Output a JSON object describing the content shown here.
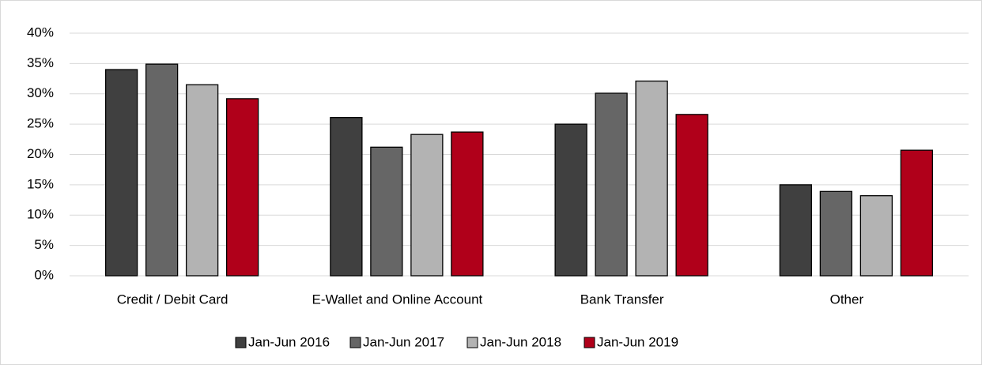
{
  "chart_data": {
    "type": "bar",
    "categories": [
      "Credit / Debit Card",
      "E-Wallet and Online Account",
      "Bank Transfer",
      "Other"
    ],
    "series": [
      {
        "name": "Jan-Jun 2016",
        "color": "#404040",
        "values": [
          34.0,
          26.1,
          25.0,
          15.0
        ]
      },
      {
        "name": "Jan-Jun 2017",
        "color": "#666666",
        "values": [
          34.9,
          21.2,
          30.1,
          13.9
        ]
      },
      {
        "name": "Jan-Jun 2018",
        "color": "#b3b3b3",
        "values": [
          31.5,
          23.3,
          32.1,
          13.2
        ]
      },
      {
        "name": "Jan-Jun 2019",
        "color": "#b0001a",
        "values": [
          29.2,
          23.7,
          26.6,
          20.7
        ]
      }
    ],
    "ylim": [
      0,
      40
    ],
    "yticks": [
      {
        "value": 0,
        "label": "0%"
      },
      {
        "value": 5,
        "label": "5%"
      },
      {
        "value": 10,
        "label": "10%"
      },
      {
        "value": 15,
        "label": "15%"
      },
      {
        "value": 20,
        "label": "20%"
      },
      {
        "value": 25,
        "label": "25%"
      },
      {
        "value": 30,
        "label": "30%"
      },
      {
        "value": 35,
        "label": "35%"
      },
      {
        "value": 40,
        "label": "40%"
      }
    ],
    "grid": true,
    "legend": "bottom"
  }
}
